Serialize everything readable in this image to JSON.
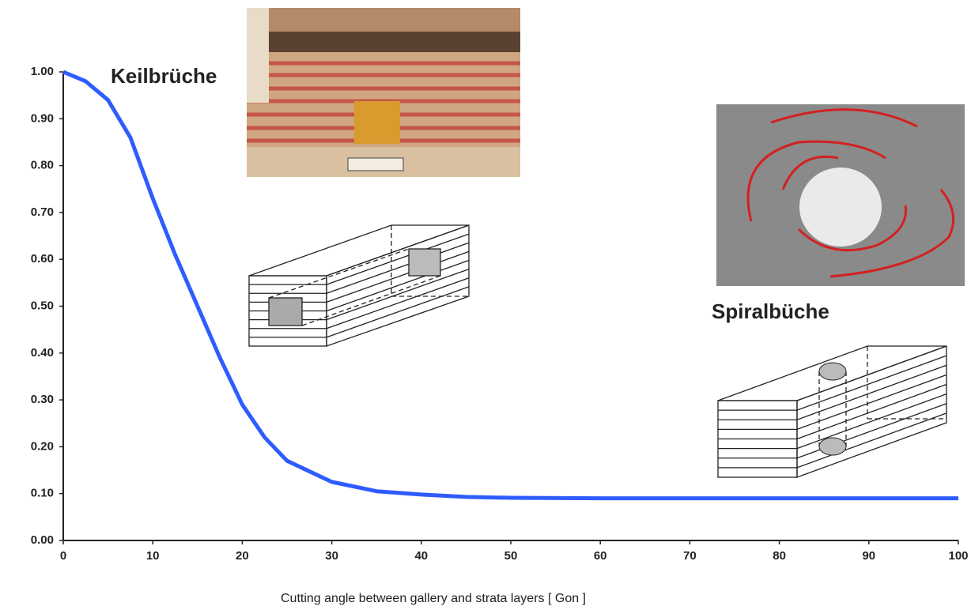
{
  "chart_data": {
    "type": "line",
    "x_label": "Cutting angle between gallery and strata layers [ Gon ]",
    "annotations": [
      "Keilbrüche",
      "Spiralbüche"
    ],
    "x": [
      0,
      2.5,
      5,
      7.5,
      10,
      12.5,
      15,
      17.5,
      20,
      22.5,
      25,
      30,
      35,
      40,
      45,
      50,
      60,
      70,
      80,
      90,
      100
    ],
    "series": [
      {
        "color": "#2f5cff",
        "values": [
          1.0,
          0.98,
          0.94,
          0.86,
          0.73,
          0.61,
          0.5,
          0.39,
          0.29,
          0.22,
          0.17,
          0.125,
          0.105,
          0.098,
          0.093,
          0.091,
          0.09,
          0.09,
          0.09,
          0.09,
          0.09
        ]
      }
    ],
    "xlim": [
      0,
      100
    ],
    "xticks": [
      0,
      10,
      20,
      30,
      40,
      50,
      60,
      70,
      80,
      90,
      100
    ],
    "ylim": [
      0,
      1
    ],
    "yticks": [
      {
        "value": 0,
        "label": "0.00"
      },
      {
        "value": 0.1,
        "label": "0.10"
      },
      {
        "value": 0.2,
        "label": "0.20"
      },
      {
        "value": 0.3,
        "label": "0.30"
      },
      {
        "value": 0.4,
        "label": "0.40"
      },
      {
        "value": 0.5,
        "label": "0.50"
      },
      {
        "value": 0.6,
        "label": "0.60"
      },
      {
        "value": 0.7,
        "label": "0.70"
      },
      {
        "value": 0.8,
        "label": "0.80"
      },
      {
        "value": 0.9,
        "label": "0.90"
      },
      {
        "value": 1,
        "label": "1.00"
      }
    ]
  }
}
